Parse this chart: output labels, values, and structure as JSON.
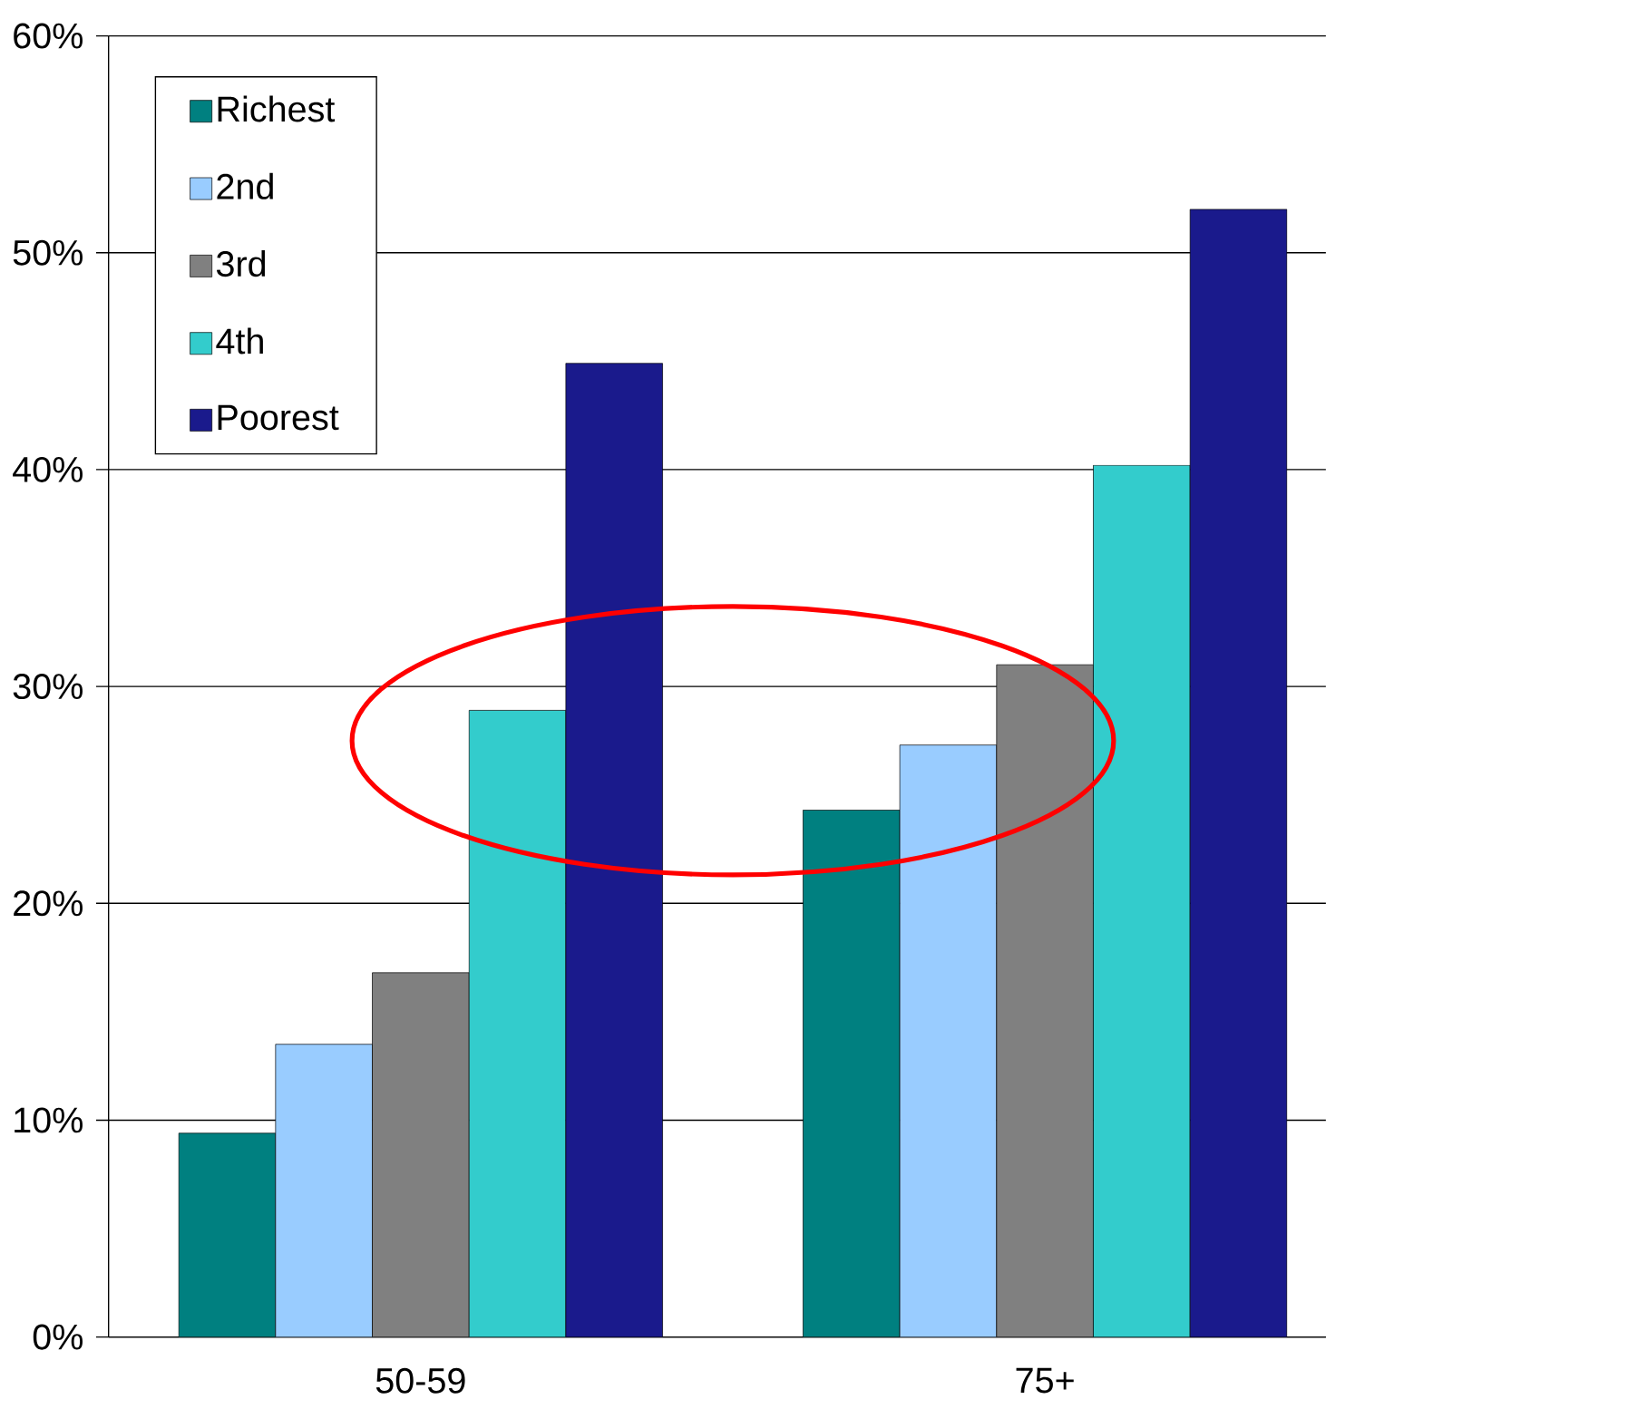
{
  "chart_data": {
    "type": "bar",
    "categories": [
      "50-59",
      "75+"
    ],
    "series": [
      {
        "name": "Richest",
        "color": "#008080",
        "values": [
          9.4,
          24.3
        ]
      },
      {
        "name": "2nd",
        "color": "#99ccff",
        "values": [
          13.5,
          27.3
        ]
      },
      {
        "name": "3rd",
        "color": "#808080",
        "values": [
          16.8,
          31.0
        ]
      },
      {
        "name": "4th",
        "color": "#33cccc",
        "values": [
          28.9,
          40.2
        ]
      },
      {
        "name": "Poorest",
        "color": "#1a1a8c",
        "values": [
          44.9,
          52.0
        ]
      }
    ],
    "ylim": [
      0,
      60
    ],
    "yticks": [
      {
        "value": 0,
        "label": "0%"
      },
      {
        "value": 10,
        "label": "10%"
      },
      {
        "value": 20,
        "label": "20%"
      },
      {
        "value": 30,
        "label": "30%"
      },
      {
        "value": 40,
        "label": "40%"
      },
      {
        "value": 50,
        "label": "50%"
      },
      {
        "value": 60,
        "label": "60%"
      }
    ],
    "grid": "y",
    "legend": "top left"
  }
}
